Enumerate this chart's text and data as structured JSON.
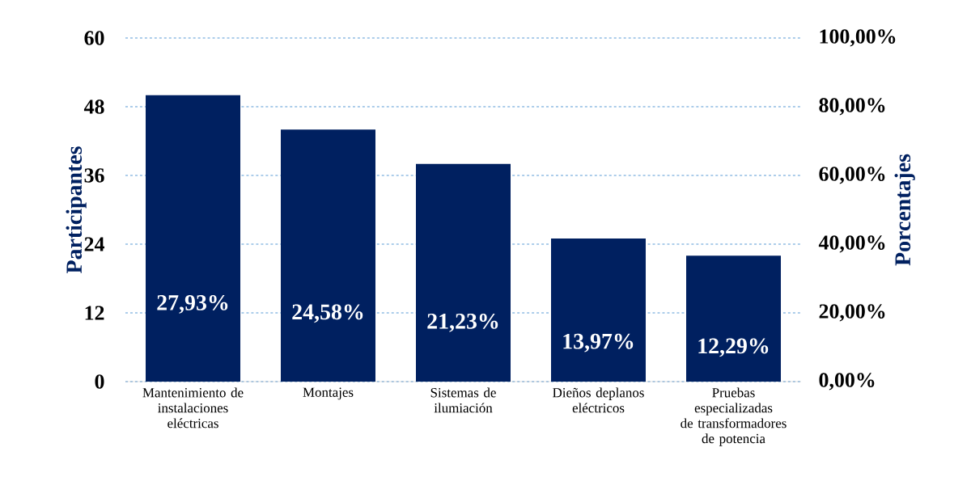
{
  "chart_data": {
    "type": "bar",
    "categories": [
      "Mantenimiento de instalaciones eléctricas",
      "Montajes",
      "Sistemas de ilumiación",
      "Dieños deplanos eléctricos",
      "Pruebas especializadas de transformadores de potencia"
    ],
    "values": [
      50,
      44,
      38,
      25,
      22
    ],
    "color": "#002060",
    "annotations": [
      "27,93%",
      "24,58%",
      "21,23%",
      "13,97%",
      "12,29%"
    ],
    "ylim": [
      0,
      60
    ],
    "yticks": [
      0,
      12,
      24,
      36,
      48,
      60
    ],
    "y2lim": [
      0,
      100
    ],
    "y2ticks": [
      {
        "value": 0,
        "label": "0,00%"
      },
      {
        "value": 20,
        "label": "20,00%"
      },
      {
        "value": 40,
        "label": "40,00%"
      },
      {
        "value": 60,
        "label": "60,00%"
      },
      {
        "value": 80,
        "label": "80,00%"
      },
      {
        "value": 100,
        "label": "100,00%"
      }
    ],
    "ylabel": "Participantes",
    "y2label": "Porcentajes",
    "grid": "y"
  }
}
